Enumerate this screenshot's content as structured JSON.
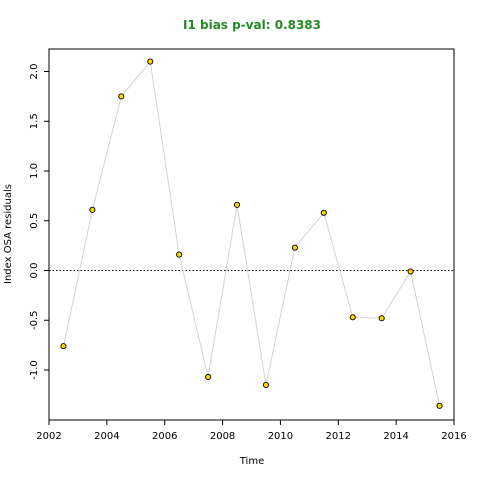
{
  "chart_data": {
    "type": "line",
    "title": "I1 bias p-val: 0.8383",
    "title_color": "#228B22",
    "xlabel": "Time",
    "ylabel": "Index OSA residuals",
    "xlim": [
      2002,
      2016
    ],
    "ylim": [
      -1.5,
      2.25
    ],
    "x_ticks": [
      2002,
      2004,
      2006,
      2008,
      2010,
      2012,
      2014,
      2016
    ],
    "x_tick_labels": [
      "2002",
      "2004",
      "2006",
      "2008",
      "2010",
      "2012",
      "2014",
      "2016"
    ],
    "y_ticks": [
      -1.0,
      -0.5,
      0.0,
      0.5,
      1.0,
      1.5,
      2.0
    ],
    "y_tick_labels": [
      "-1.0",
      "-0.5",
      "0.0",
      "0.5",
      "1.0",
      "1.5",
      "2.0"
    ],
    "reference_line": {
      "y": 0,
      "style": "dotted"
    },
    "grid": false,
    "line_color": "#d3d3d3",
    "point_fill": "#FFD700",
    "point_stroke": "#000000",
    "series": [
      {
        "x": [
          2002.5,
          2003.5,
          2004.5,
          2005.5,
          2006.5,
          2007.5,
          2008.5,
          2009.5,
          2010.5,
          2011.5,
          2012.5,
          2013.5,
          2014.5,
          2015.5
        ],
        "values": [
          -0.76,
          0.61,
          1.75,
          2.1,
          0.16,
          -1.07,
          0.66,
          -1.15,
          0.23,
          0.58,
          -0.47,
          -0.48,
          -0.01,
          -1.36
        ]
      }
    ]
  }
}
